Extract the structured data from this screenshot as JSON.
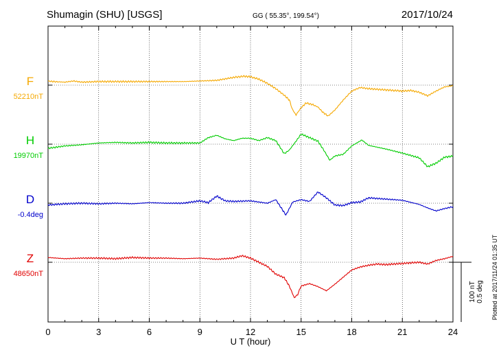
{
  "header": {
    "station": "Shumagin (SHU)  [USGS]",
    "coords": "GG ( 55.35°, 199.54°)",
    "date": "2017/10/24"
  },
  "chart_data": {
    "type": "line",
    "xlabel": "U T (hour)",
    "xlim": [
      0,
      24
    ],
    "x_ticks": [
      0,
      3,
      6,
      9,
      12,
      15,
      18,
      21,
      24
    ],
    "grid": true,
    "scale_bar": {
      "nt": "100 nT",
      "deg": "0.5 deg"
    },
    "footnote": "Plotted at 2017/11/24 01:35 UT",
    "series": [
      {
        "name": "F",
        "baseline_label": "52210nT",
        "color": "#f5a800",
        "points": [
          [
            0,
            7
          ],
          [
            0.3,
            6
          ],
          [
            1,
            5
          ],
          [
            1.5,
            7
          ],
          [
            2,
            5
          ],
          [
            3,
            6
          ],
          [
            4,
            6
          ],
          [
            5,
            6
          ],
          [
            6,
            6
          ],
          [
            7,
            6
          ],
          [
            8,
            6
          ],
          [
            9,
            7
          ],
          [
            10,
            8
          ],
          [
            11,
            13
          ],
          [
            11.6,
            15
          ],
          [
            12,
            14
          ],
          [
            12.5,
            10
          ],
          [
            13,
            3
          ],
          [
            13.5,
            -6
          ],
          [
            14,
            -17
          ],
          [
            14.3,
            -25
          ],
          [
            14.5,
            -42
          ],
          [
            14.7,
            -50
          ],
          [
            15,
            -38
          ],
          [
            15.3,
            -30
          ],
          [
            15.7,
            -33
          ],
          [
            16,
            -37
          ],
          [
            16.3,
            -46
          ],
          [
            16.6,
            -52
          ],
          [
            17,
            -42
          ],
          [
            17.5,
            -25
          ],
          [
            18,
            -10
          ],
          [
            18.5,
            -4
          ],
          [
            19,
            -6
          ],
          [
            20,
            -8
          ],
          [
            21,
            -10
          ],
          [
            21.5,
            -9
          ],
          [
            22,
            -12
          ],
          [
            22.5,
            -18
          ],
          [
            23,
            -10
          ],
          [
            23.5,
            -3
          ],
          [
            24,
            -1
          ]
        ]
      },
      {
        "name": "H",
        "baseline_label": "19970nT",
        "color": "#00cc00",
        "points": [
          [
            0,
            -7
          ],
          [
            1,
            -3
          ],
          [
            2,
            -1
          ],
          [
            3,
            2
          ],
          [
            4,
            3
          ],
          [
            5,
            2
          ],
          [
            6,
            3
          ],
          [
            7,
            2
          ],
          [
            8,
            2
          ],
          [
            9,
            2
          ],
          [
            9.5,
            11
          ],
          [
            10,
            15
          ],
          [
            10.5,
            9
          ],
          [
            11,
            6
          ],
          [
            11.5,
            10
          ],
          [
            12,
            10
          ],
          [
            12.5,
            6
          ],
          [
            13,
            11
          ],
          [
            13.5,
            6
          ],
          [
            14,
            -16
          ],
          [
            14.3,
            -10
          ],
          [
            14.7,
            5
          ],
          [
            15,
            17
          ],
          [
            15.5,
            11
          ],
          [
            16,
            5
          ],
          [
            16.3,
            -8
          ],
          [
            16.7,
            -27
          ],
          [
            17,
            -20
          ],
          [
            17.5,
            -17
          ],
          [
            18,
            -3
          ],
          [
            18.6,
            7
          ],
          [
            19,
            -2
          ],
          [
            20,
            -8
          ],
          [
            21,
            -15
          ],
          [
            22,
            -23
          ],
          [
            22.5,
            -38
          ],
          [
            23,
            -32
          ],
          [
            23.5,
            -22
          ],
          [
            24,
            -20
          ]
        ]
      },
      {
        "name": "D",
        "baseline_label": "-0.4deg",
        "color": "#0000cc",
        "points": [
          [
            0,
            -3
          ],
          [
            1,
            -1
          ],
          [
            2,
            0
          ],
          [
            3,
            -1
          ],
          [
            4,
            0
          ],
          [
            5,
            -1
          ],
          [
            6,
            1
          ],
          [
            7,
            0
          ],
          [
            8,
            0
          ],
          [
            9,
            4
          ],
          [
            9.5,
            1
          ],
          [
            10,
            12
          ],
          [
            10.5,
            4
          ],
          [
            11,
            3
          ],
          [
            12,
            4
          ],
          [
            13,
            0
          ],
          [
            13.5,
            6
          ],
          [
            13.8,
            -7
          ],
          [
            14.1,
            -20
          ],
          [
            14.5,
            2
          ],
          [
            15,
            6
          ],
          [
            15.5,
            3
          ],
          [
            16,
            19
          ],
          [
            16.5,
            9
          ],
          [
            17,
            -3
          ],
          [
            17.5,
            -4
          ],
          [
            18,
            1
          ],
          [
            18.5,
            2
          ],
          [
            19,
            9
          ],
          [
            20,
            7
          ],
          [
            21,
            5
          ],
          [
            22,
            -2
          ],
          [
            22.5,
            -8
          ],
          [
            23,
            -13
          ],
          [
            23.5,
            -9
          ],
          [
            24,
            -6
          ]
        ]
      },
      {
        "name": "Z",
        "baseline_label": "48650nT",
        "color": "#e00000",
        "points": [
          [
            0,
            8
          ],
          [
            1,
            6
          ],
          [
            2,
            7
          ],
          [
            3,
            7
          ],
          [
            4,
            6
          ],
          [
            5,
            8
          ],
          [
            6,
            7
          ],
          [
            7,
            7
          ],
          [
            8,
            6
          ],
          [
            9,
            7
          ],
          [
            10,
            5
          ],
          [
            11,
            7
          ],
          [
            11.5,
            11
          ],
          [
            12,
            7
          ],
          [
            12.5,
            0
          ],
          [
            13,
            -7
          ],
          [
            13.5,
            -20
          ],
          [
            14,
            -26
          ],
          [
            14.3,
            -40
          ],
          [
            14.6,
            -60
          ],
          [
            14.8,
            -54
          ],
          [
            15,
            -40
          ],
          [
            15.5,
            -36
          ],
          [
            16,
            -41
          ],
          [
            16.5,
            -48
          ],
          [
            17,
            -37
          ],
          [
            17.5,
            -25
          ],
          [
            18,
            -13
          ],
          [
            18.5,
            -8
          ],
          [
            19,
            -5
          ],
          [
            19.5,
            -3
          ],
          [
            20,
            -4
          ],
          [
            21,
            -2
          ],
          [
            22,
            0
          ],
          [
            22.5,
            -3
          ],
          [
            23,
            3
          ],
          [
            23.5,
            6
          ],
          [
            24,
            10
          ]
        ]
      }
    ]
  }
}
